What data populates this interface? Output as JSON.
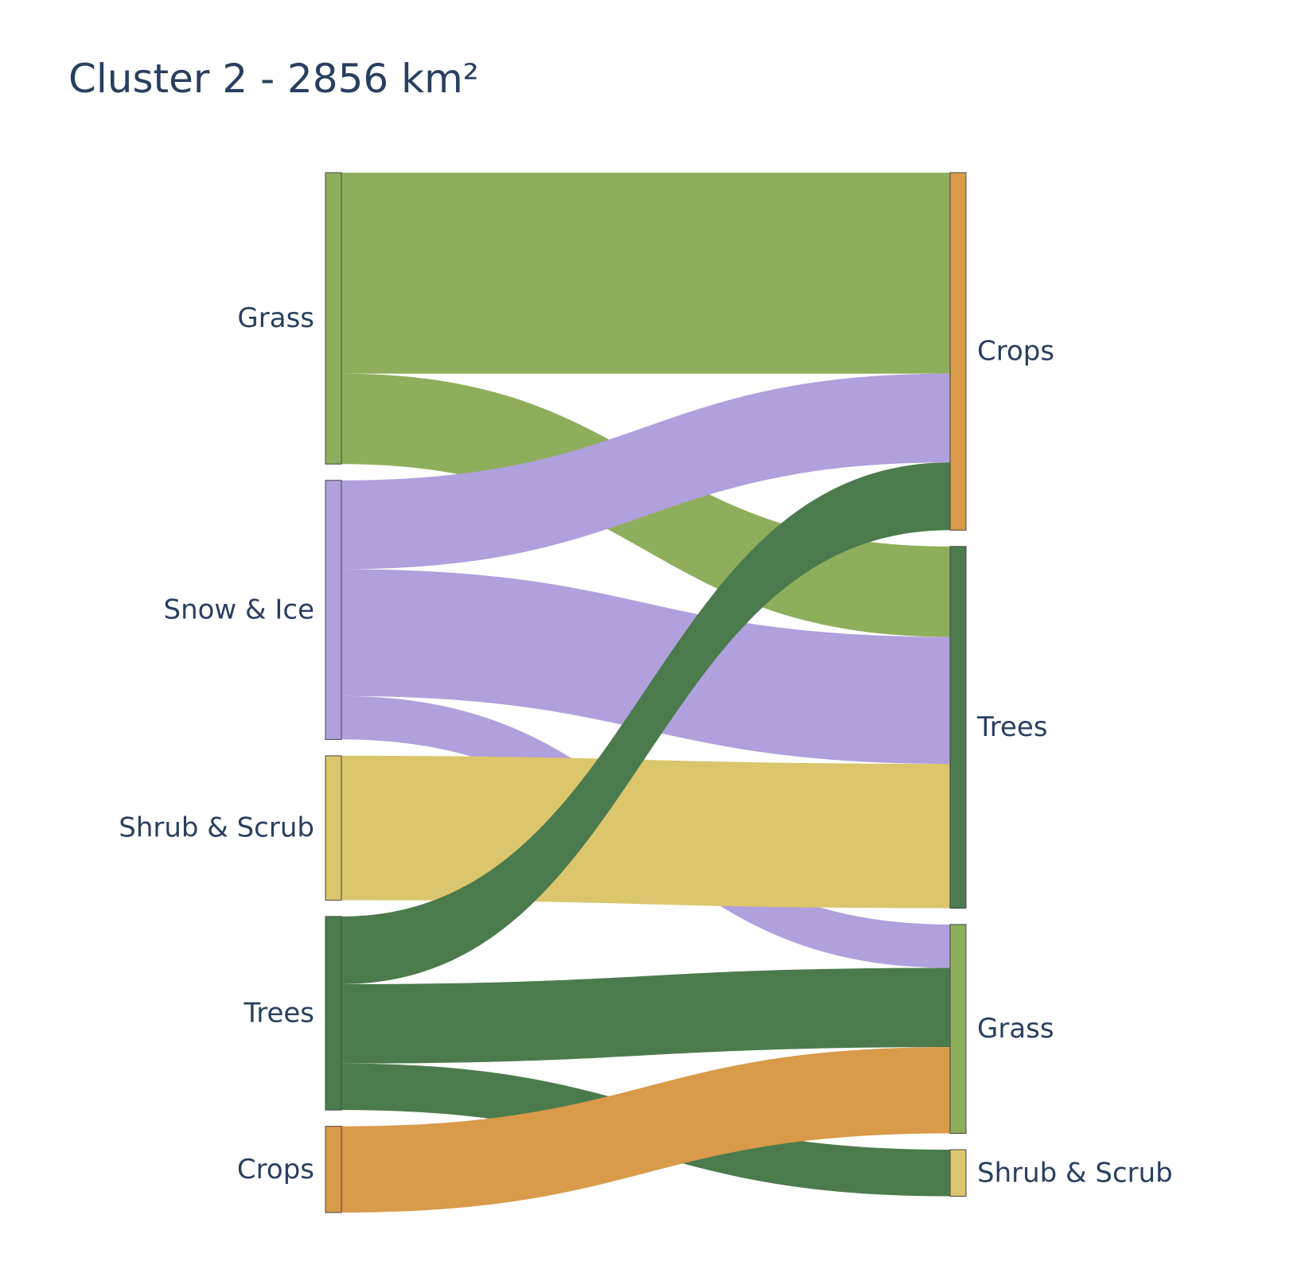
{
  "chart_data": {
    "type": "sankey",
    "title": "Cluster 2 - 2856 km²",
    "colors": {
      "Grass": "#8fae5c",
      "Snow & Ice": "#b0a0dc",
      "Shrub & Scrub": "#dbc56d",
      "Trees": "#4b7b4d",
      "Crops": "#d99a4a"
    },
    "sources": [
      {
        "id": "src-grass",
        "label": "Grass",
        "color_key": "Grass"
      },
      {
        "id": "src-snow-ice",
        "label": "Snow & Ice",
        "color_key": "Snow & Ice"
      },
      {
        "id": "src-shrub-scrub",
        "label": "Shrub & Scrub",
        "color_key": "Shrub & Scrub"
      },
      {
        "id": "src-trees",
        "label": "Trees",
        "color_key": "Trees"
      },
      {
        "id": "src-crops",
        "label": "Crops",
        "color_key": "Crops"
      }
    ],
    "targets": [
      {
        "id": "tgt-crops",
        "label": "Crops",
        "color_key": "Crops"
      },
      {
        "id": "tgt-trees",
        "label": "Trees",
        "color_key": "Trees"
      },
      {
        "id": "tgt-grass",
        "label": "Grass",
        "color_key": "Grass"
      },
      {
        "id": "tgt-shrub-scrub",
        "label": "Shrub & Scrub",
        "color_key": "Shrub & Scrub"
      }
    ],
    "links": [
      {
        "source": "src-grass",
        "target": "tgt-crops",
        "value": 380
      },
      {
        "source": "src-grass",
        "target": "tgt-trees",
        "value": 171
      },
      {
        "source": "src-snow-ice",
        "target": "tgt-crops",
        "value": 168
      },
      {
        "source": "src-snow-ice",
        "target": "tgt-trees",
        "value": 240
      },
      {
        "source": "src-snow-ice",
        "target": "tgt-grass",
        "value": 82
      },
      {
        "source": "src-shrub-scrub",
        "target": "tgt-trees",
        "value": 273
      },
      {
        "source": "src-trees",
        "target": "tgt-crops",
        "value": 128
      },
      {
        "source": "src-trees",
        "target": "tgt-grass",
        "value": 150
      },
      {
        "source": "src-trees",
        "target": "tgt-shrub-scrub",
        "value": 88
      },
      {
        "source": "src-crops",
        "target": "tgt-grass",
        "value": 163
      }
    ]
  }
}
